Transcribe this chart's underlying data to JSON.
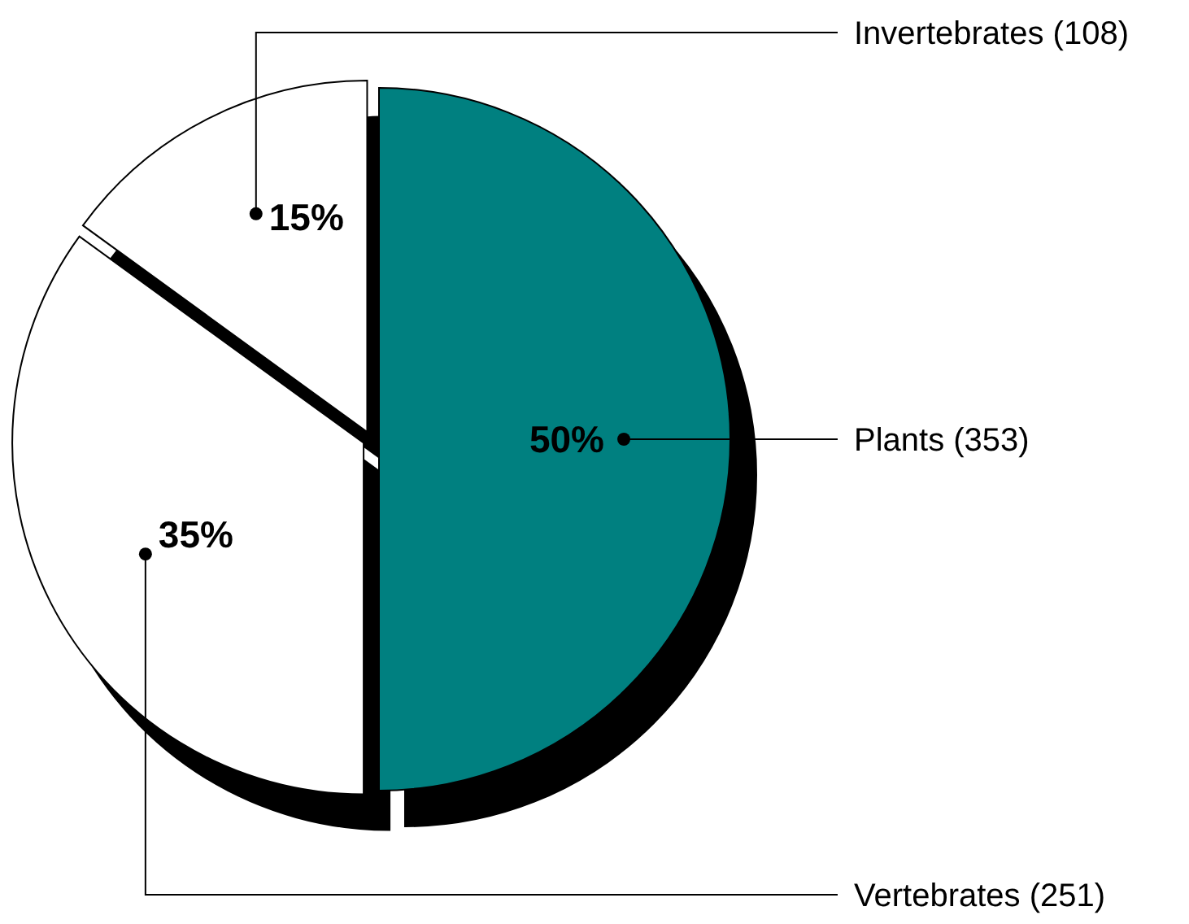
{
  "chart_data": {
    "type": "pie",
    "categories": [
      "Plants (353)",
      "Vertebrates (251)",
      "Invertebrates (108)"
    ],
    "values": [
      50,
      35,
      15
    ],
    "colors": [
      "#008080",
      "#ffffff",
      "#ffffff"
    ],
    "value_labels": [
      "50%",
      "35%",
      "15%"
    ]
  }
}
